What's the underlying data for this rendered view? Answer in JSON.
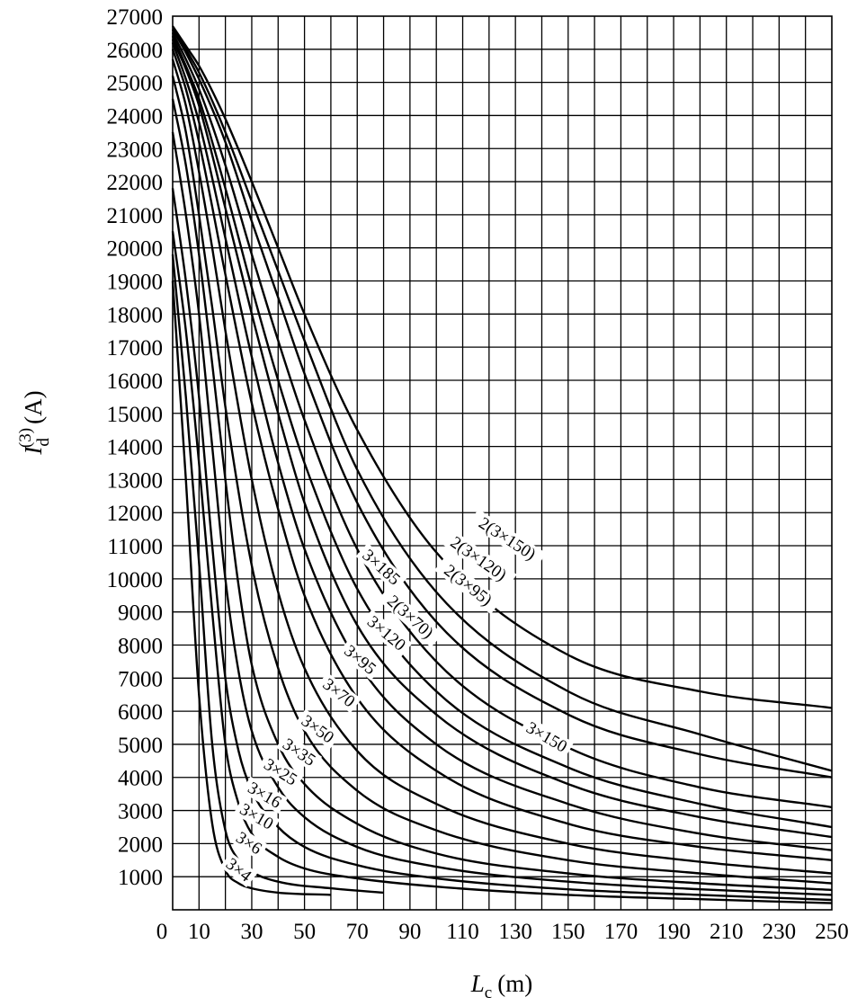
{
  "chart_data": {
    "type": "line",
    "xlabel_symbol": "L",
    "xlabel_subscript": "c",
    "xlabel_unit": "(m)",
    "ylabel_symbol": "I",
    "ylabel_subscript": "d",
    "ylabel_superscript": "(3)",
    "ylabel_unit": "(A)",
    "xlim": [
      0,
      250
    ],
    "ylim": [
      0,
      27000
    ],
    "grid": true,
    "x_ticks": [
      0,
      10,
      30,
      50,
      70,
      90,
      110,
      130,
      150,
      170,
      190,
      210,
      230,
      250
    ],
    "x_tick_labels": [
      "0",
      "10",
      "30",
      "50",
      "70",
      "90",
      "110",
      "130",
      "150",
      "170",
      "190",
      "210",
      "230",
      "250"
    ],
    "y_ticks": [
      1000,
      2000,
      3000,
      4000,
      5000,
      6000,
      7000,
      8000,
      9000,
      10000,
      11000,
      12000,
      13000,
      14000,
      15000,
      16000,
      17000,
      18000,
      19000,
      20000,
      21000,
      22000,
      23000,
      24000,
      25000,
      26000,
      27000
    ],
    "y_tick_labels": [
      "1000",
      "2000",
      "3000",
      "4000",
      "5000",
      "6000",
      "7000",
      "8000",
      "9000",
      "10000",
      "11000",
      "12000",
      "13000",
      "14000",
      "15000",
      "16000",
      "17000",
      "18000",
      "19000",
      "20000",
      "21000",
      "22000",
      "23000",
      "24000",
      "25000",
      "26000",
      "27000"
    ],
    "series": [
      {
        "name": "3×4",
        "x": [
          0,
          5,
          10,
          15,
          20,
          25,
          30,
          40,
          60
        ],
        "y": [
          19000,
          13000,
          6500,
          2600,
          1200,
          800,
          650,
          520,
          450
        ]
      },
      {
        "name": "3×6",
        "x": [
          0,
          5,
          10,
          15,
          20,
          25,
          30,
          40,
          60,
          80
        ],
        "y": [
          19800,
          15500,
          10500,
          5000,
          2400,
          1500,
          1150,
          850,
          650,
          520
        ]
      },
      {
        "name": "3×10",
        "x": [
          0,
          5,
          10,
          15,
          20,
          25,
          30,
          40,
          50,
          70,
          100,
          150,
          200,
          250
        ],
        "y": [
          20500,
          17500,
          13500,
          9000,
          5000,
          3200,
          2300,
          1600,
          1250,
          950,
          700,
          450,
          320,
          200
        ]
      },
      {
        "name": "3×16",
        "x": [
          0,
          5,
          10,
          15,
          20,
          25,
          30,
          40,
          50,
          70,
          100,
          150,
          200,
          250
        ],
        "y": [
          21800,
          19000,
          15500,
          11000,
          7000,
          4800,
          3600,
          2500,
          1900,
          1350,
          950,
          620,
          450,
          300
        ]
      },
      {
        "name": "3×25",
        "x": [
          0,
          5,
          10,
          15,
          20,
          25,
          30,
          40,
          50,
          70,
          100,
          150,
          200,
          250
        ],
        "y": [
          23500,
          21000,
          18000,
          14000,
          10000,
          7200,
          5400,
          3700,
          2800,
          1900,
          1300,
          850,
          620,
          450
        ]
      },
      {
        "name": "3×35",
        "x": [
          0,
          5,
          10,
          15,
          20,
          25,
          30,
          40,
          50,
          70,
          100,
          150,
          200,
          250
        ],
        "y": [
          24500,
          22500,
          19800,
          16500,
          13000,
          9800,
          7400,
          5000,
          3800,
          2600,
          1700,
          1100,
          800,
          600
        ]
      },
      {
        "name": "3×50",
        "x": [
          0,
          5,
          10,
          15,
          20,
          30,
          40,
          50,
          70,
          100,
          150,
          200,
          250
        ],
        "y": [
          25200,
          23500,
          21000,
          18200,
          15200,
          10400,
          7300,
          5400,
          3600,
          2400,
          1500,
          1100,
          800
        ]
      },
      {
        "name": "3×70",
        "x": [
          0,
          5,
          10,
          15,
          20,
          30,
          40,
          50,
          70,
          100,
          150,
          200,
          250
        ],
        "y": [
          25700,
          24300,
          22300,
          20000,
          17500,
          13000,
          9600,
          7300,
          4800,
          3200,
          2000,
          1450,
          1100
        ]
      },
      {
        "name": "3×95",
        "x": [
          0,
          5,
          10,
          20,
          30,
          40,
          50,
          70,
          100,
          150,
          200,
          250
        ],
        "y": [
          26000,
          24800,
          23200,
          19200,
          15300,
          12100,
          9500,
          6400,
          4200,
          2600,
          1900,
          1500
        ]
      },
      {
        "name": "3×120",
        "x": [
          0,
          5,
          10,
          20,
          30,
          40,
          50,
          70,
          100,
          150,
          200,
          250
        ],
        "y": [
          26200,
          25100,
          23800,
          20300,
          16700,
          13500,
          10900,
          7500,
          5000,
          3200,
          2300,
          1800
        ]
      },
      {
        "name": "3×150",
        "x": [
          0,
          5,
          10,
          20,
          30,
          40,
          50,
          70,
          100,
          150,
          200,
          250
        ],
        "y": [
          26300,
          25400,
          24300,
          21200,
          18000,
          15000,
          12300,
          8600,
          5900,
          3800,
          2800,
          2200
        ]
      },
      {
        "name": "3×185",
        "x": [
          0,
          5,
          10,
          20,
          30,
          40,
          50,
          70,
          100,
          150,
          200,
          250
        ],
        "y": [
          26400,
          25500,
          24500,
          21800,
          18800,
          16000,
          13500,
          9700,
          6600,
          4300,
          3200,
          2500
        ]
      },
      {
        "name": "2(3×70)",
        "x": [
          0,
          5,
          10,
          20,
          30,
          40,
          50,
          70,
          100,
          150,
          200,
          250
        ],
        "y": [
          26500,
          25700,
          24800,
          22500,
          19800,
          17200,
          14800,
          10900,
          7500,
          4900,
          3700,
          3100
        ]
      },
      {
        "name": "2(3×95)",
        "x": [
          0,
          5,
          10,
          20,
          30,
          40,
          50,
          70,
          100,
          150,
          200,
          250
        ],
        "y": [
          26600,
          25900,
          25100,
          23200,
          20800,
          18500,
          16200,
          12300,
          8700,
          5900,
          4700,
          4000
        ]
      },
      {
        "name": "2(3×120)",
        "x": [
          0,
          5,
          10,
          20,
          30,
          40,
          50,
          70,
          100,
          150,
          200,
          250
        ],
        "y": [
          26600,
          26000,
          25300,
          23500,
          21400,
          19300,
          17200,
          13300,
          9600,
          6600,
          5300,
          4200
        ]
      },
      {
        "name": "2(3×150)",
        "x": [
          0,
          5,
          10,
          20,
          30,
          40,
          50,
          70,
          100,
          150,
          200,
          250
        ],
        "y": [
          26700,
          26100,
          25500,
          23900,
          22000,
          20000,
          18000,
          14500,
          10800,
          7700,
          6600,
          6100
        ]
      }
    ],
    "annotations": [
      {
        "text": "3×4",
        "series": "3×4",
        "at_x": 24,
        "at_y": 1100,
        "angle": 38
      },
      {
        "text": "3×6",
        "series": "3×6",
        "at_x": 28,
        "at_y": 1900,
        "angle": 33
      },
      {
        "text": "3×10",
        "series": "3×10",
        "at_x": 31,
        "at_y": 2700,
        "angle": 30
      },
      {
        "text": "3×16",
        "series": "3×16",
        "at_x": 34,
        "at_y": 3350,
        "angle": 30
      },
      {
        "text": "3×25",
        "series": "3×25",
        "at_x": 40,
        "at_y": 4050,
        "angle": 32
      },
      {
        "text": "3×35",
        "series": "3×35",
        "at_x": 47,
        "at_y": 4650,
        "angle": 34
      },
      {
        "text": "3×50",
        "series": "3×50",
        "at_x": 54,
        "at_y": 5350,
        "angle": 36
      },
      {
        "text": "3×70",
        "series": "3×70",
        "at_x": 62,
        "at_y": 6450,
        "angle": 38
      },
      {
        "text": "3×95",
        "series": "3×95",
        "at_x": 70,
        "at_y": 7450,
        "angle": 40
      },
      {
        "text": "3×120",
        "series": "3×120",
        "at_x": 80,
        "at_y": 8250,
        "angle": 40
      },
      {
        "text": "2(3×70)",
        "series": "2(3×70)",
        "at_x": 89,
        "at_y": 8750,
        "angle": 42
      },
      {
        "text": "3×185",
        "series": "3×185",
        "at_x": 78,
        "at_y": 10250,
        "angle": 42
      },
      {
        "text": "2(3×95)",
        "series": "2(3×95)",
        "at_x": 111,
        "at_y": 9700,
        "angle": 38
      },
      {
        "text": "2(3×120)",
        "series": "2(3×120)",
        "at_x": 115,
        "at_y": 10500,
        "angle": 35
      },
      {
        "text": "2(3×150)",
        "series": "2(3×150)",
        "at_x": 126,
        "at_y": 11100,
        "angle": 33
      },
      {
        "text": "3×150",
        "series": "3×150",
        "at_x": 141,
        "at_y": 5100,
        "angle": 30
      }
    ]
  }
}
